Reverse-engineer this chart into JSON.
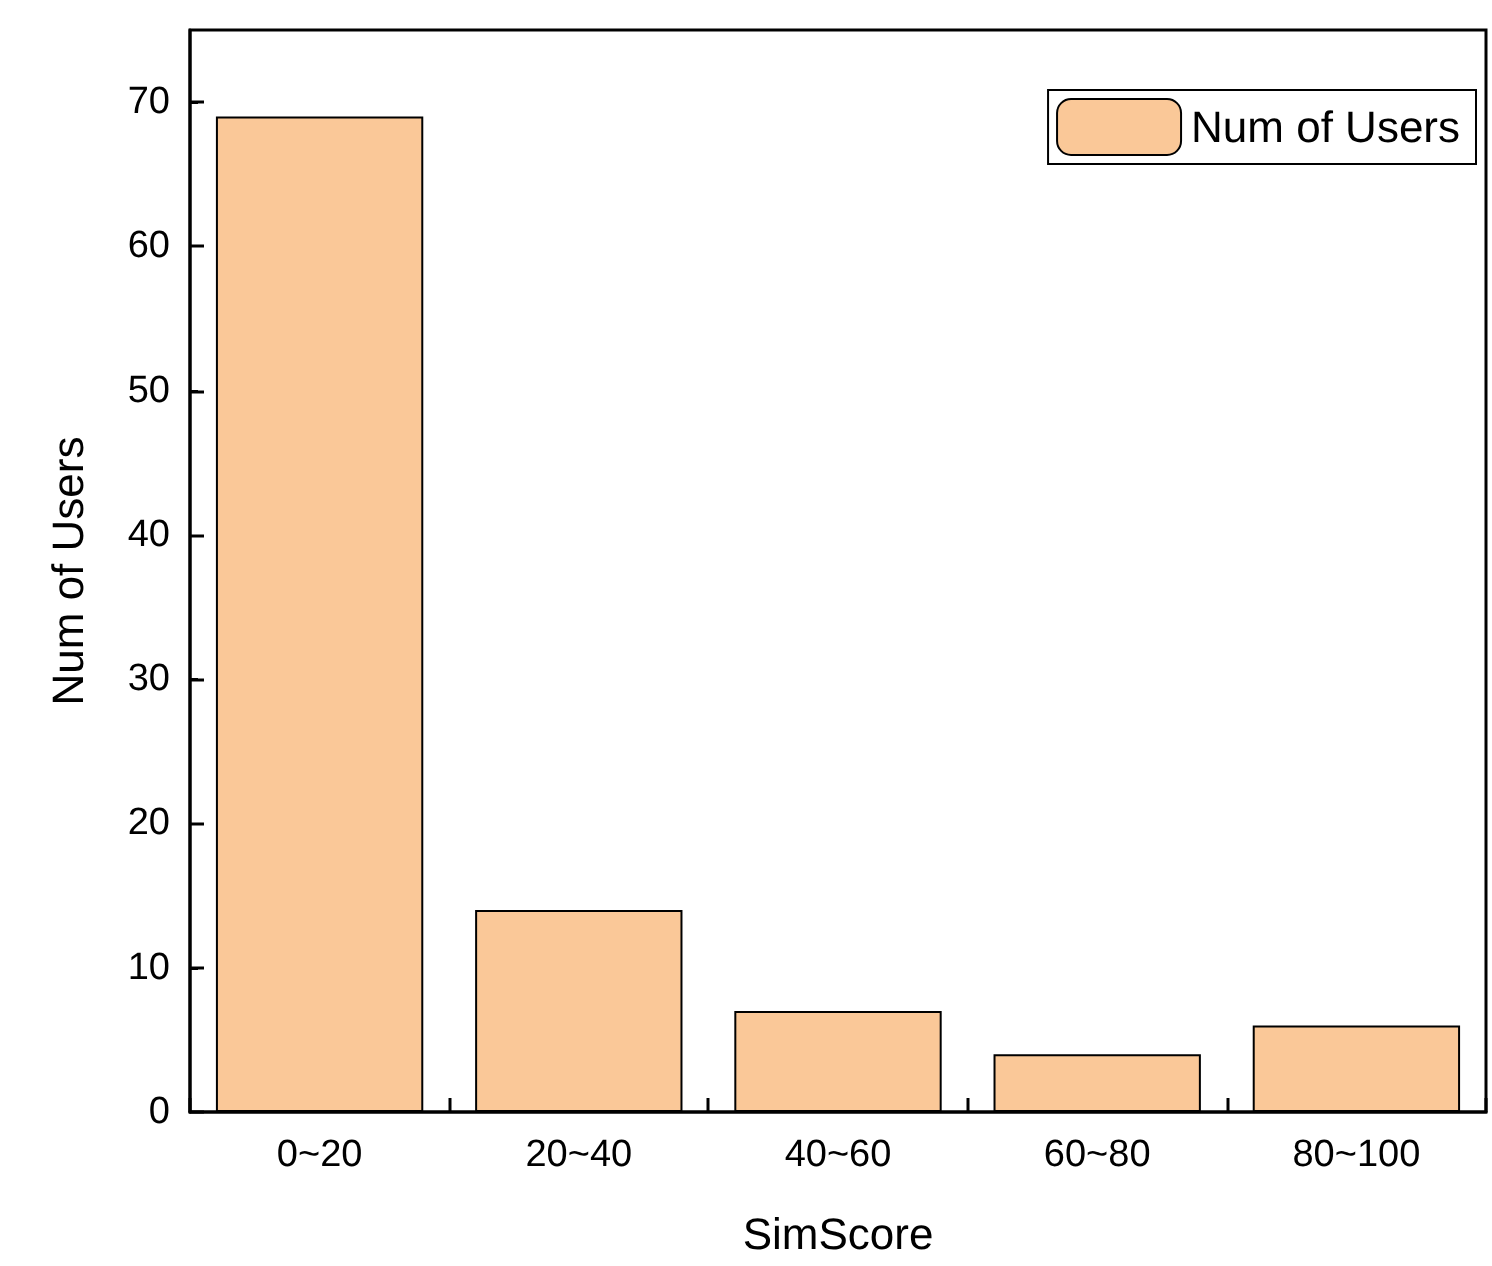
{
  "chart_data": {
    "type": "bar",
    "xlabel": "SimScore",
    "ylabel": "Num of Users",
    "categories": [
      "0~20",
      "20~40",
      "40~60",
      "60~80",
      "80~100"
    ],
    "series": [
      {
        "name": "Num of Users",
        "color": "#fac898",
        "values": [
          69,
          14,
          7,
          4,
          6
        ]
      }
    ],
    "ylim": [
      0,
      75
    ],
    "yticks": [
      0,
      10,
      20,
      30,
      40,
      50,
      60,
      70
    ],
    "grid": false,
    "legend": "top right"
  }
}
